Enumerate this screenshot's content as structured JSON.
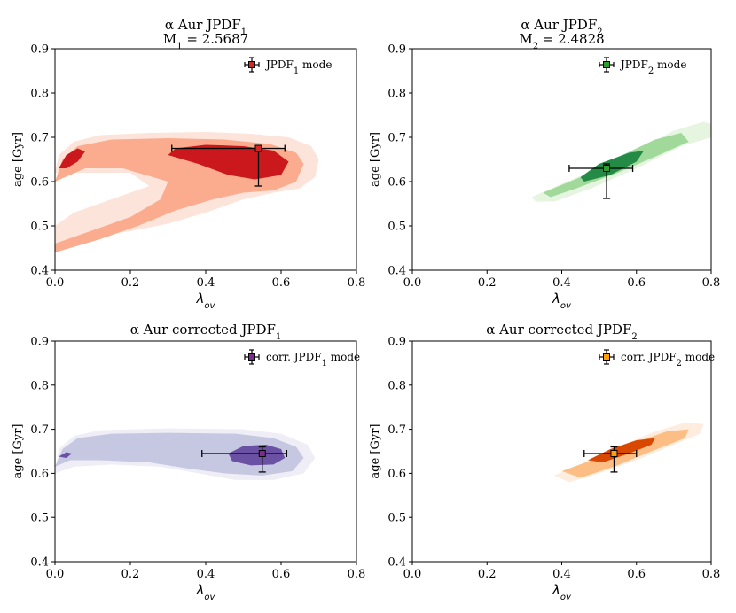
{
  "chart_data": [
    {
      "type": "contour",
      "title": "α Aur JPDF",
      "title_sub": "1",
      "subtitle": "M",
      "subtitle_sub": "1",
      "subtitle_value": " = 2.5687",
      "xlabel": "λ",
      "xlabel_sub": "ov",
      "ylabel": "age [Gyr]",
      "xlim": [
        0.0,
        0.8
      ],
      "ylim": [
        0.4,
        0.9
      ],
      "xticks": [
        "0.0",
        "0.2",
        "0.4",
        "0.6",
        "0.8"
      ],
      "yticks": [
        "0.4",
        "0.5",
        "0.6",
        "0.7",
        "0.8",
        "0.9"
      ],
      "legend_label": "JPDF",
      "legend_sub": "1",
      "legend_suffix": " mode",
      "legend_loc": "top-right",
      "mode": {
        "x": 0.54,
        "y": 0.675,
        "xerr_low": 0.31,
        "xerr_high": 0.61,
        "yerr_low": 0.59,
        "yerr_high": 0.675
      },
      "palette": {
        "light": "#fde4da",
        "mid": "#fbab8e",
        "dark": "#cb181d",
        "marker": "#d62728"
      },
      "regions": {
        "light": [
          [
            0.0,
            0.62
          ],
          [
            0.01,
            0.66
          ],
          [
            0.05,
            0.69
          ],
          [
            0.12,
            0.705
          ],
          [
            0.25,
            0.71
          ],
          [
            0.4,
            0.712
          ],
          [
            0.52,
            0.708
          ],
          [
            0.62,
            0.7
          ],
          [
            0.68,
            0.68
          ],
          [
            0.7,
            0.65
          ],
          [
            0.69,
            0.61
          ],
          [
            0.65,
            0.585
          ],
          [
            0.58,
            0.575
          ],
          [
            0.5,
            0.56
          ],
          [
            0.4,
            0.53
          ],
          [
            0.3,
            0.505
          ],
          [
            0.2,
            0.488
          ],
          [
            0.1,
            0.475
          ],
          [
            0.0,
            0.455
          ],
          [
            0.0,
            0.5
          ],
          [
            0.05,
            0.53
          ],
          [
            0.15,
            0.56
          ],
          [
            0.25,
            0.59
          ],
          [
            0.2,
            0.62
          ],
          [
            0.1,
            0.62
          ]
        ],
        "mid": [
          [
            0.0,
            0.6
          ],
          [
            0.02,
            0.65
          ],
          [
            0.06,
            0.68
          ],
          [
            0.15,
            0.695
          ],
          [
            0.3,
            0.698
          ],
          [
            0.45,
            0.695
          ],
          [
            0.57,
            0.685
          ],
          [
            0.64,
            0.665
          ],
          [
            0.66,
            0.64
          ],
          [
            0.64,
            0.6
          ],
          [
            0.58,
            0.58
          ],
          [
            0.5,
            0.575
          ],
          [
            0.42,
            0.56
          ],
          [
            0.32,
            0.535
          ],
          [
            0.22,
            0.5
          ],
          [
            0.12,
            0.47
          ],
          [
            0.0,
            0.44
          ],
          [
            0.0,
            0.46
          ],
          [
            0.1,
            0.49
          ],
          [
            0.2,
            0.52
          ],
          [
            0.28,
            0.56
          ],
          [
            0.3,
            0.6
          ],
          [
            0.18,
            0.63
          ],
          [
            0.08,
            0.63
          ]
        ],
        "dark": [
          [
            0.32,
            0.675
          ],
          [
            0.4,
            0.683
          ],
          [
            0.5,
            0.68
          ],
          [
            0.58,
            0.67
          ],
          [
            0.62,
            0.645
          ],
          [
            0.6,
            0.615
          ],
          [
            0.53,
            0.605
          ],
          [
            0.46,
            0.615
          ],
          [
            0.38,
            0.64
          ],
          [
            0.3,
            0.66
          ]
        ],
        "dark2": [
          [
            0.01,
            0.63
          ],
          [
            0.03,
            0.66
          ],
          [
            0.06,
            0.675
          ],
          [
            0.08,
            0.668
          ],
          [
            0.06,
            0.645
          ],
          [
            0.03,
            0.63
          ]
        ]
      }
    },
    {
      "type": "contour",
      "title": "α Aur JPDF",
      "title_sub": "2",
      "subtitle": "M",
      "subtitle_sub": "2",
      "subtitle_value": " = 2.4828",
      "xlabel": "λ",
      "xlabel_sub": "ov",
      "ylabel": "age [Gyr]",
      "xlim": [
        0.0,
        0.8
      ],
      "ylim": [
        0.4,
        0.9
      ],
      "xticks": [
        "0.0",
        "0.2",
        "0.4",
        "0.6",
        "0.8"
      ],
      "yticks": [
        "0.4",
        "0.5",
        "0.6",
        "0.7",
        "0.8",
        "0.9"
      ],
      "legend_label": "JPDF",
      "legend_sub": "2",
      "legend_suffix": " mode",
      "legend_loc": "top-right",
      "mode": {
        "x": 0.52,
        "y": 0.63,
        "xerr_low": 0.42,
        "xerr_high": 0.59,
        "yerr_low": 0.562,
        "yerr_high": 0.64
      },
      "palette": {
        "light": "#e5f5e0",
        "mid": "#a1d99b",
        "dark": "#238b45",
        "marker": "#2ca02c"
      },
      "regions": {
        "light": [
          [
            0.32,
            0.565
          ],
          [
            0.4,
            0.595
          ],
          [
            0.5,
            0.63
          ],
          [
            0.6,
            0.67
          ],
          [
            0.7,
            0.715
          ],
          [
            0.78,
            0.735
          ],
          [
            0.8,
            0.73
          ],
          [
            0.8,
            0.7
          ],
          [
            0.72,
            0.68
          ],
          [
            0.6,
            0.63
          ],
          [
            0.48,
            0.585
          ],
          [
            0.38,
            0.555
          ],
          [
            0.33,
            0.555
          ]
        ],
        "mid": [
          [
            0.35,
            0.575
          ],
          [
            0.45,
            0.61
          ],
          [
            0.55,
            0.655
          ],
          [
            0.65,
            0.695
          ],
          [
            0.72,
            0.71
          ],
          [
            0.74,
            0.69
          ],
          [
            0.66,
            0.66
          ],
          [
            0.55,
            0.62
          ],
          [
            0.44,
            0.585
          ],
          [
            0.37,
            0.565
          ]
        ],
        "dark": [
          [
            0.45,
            0.61
          ],
          [
            0.5,
            0.64
          ],
          [
            0.58,
            0.665
          ],
          [
            0.62,
            0.67
          ],
          [
            0.6,
            0.645
          ],
          [
            0.53,
            0.615
          ],
          [
            0.46,
            0.6
          ]
        ]
      }
    },
    {
      "type": "contour",
      "title": "α Aur corrected JPDF",
      "title_sub": "1",
      "xlabel": "λ",
      "xlabel_sub": "ov",
      "ylabel": "age [Gyr]",
      "xlim": [
        0.0,
        0.8
      ],
      "ylim": [
        0.4,
        0.9
      ],
      "xticks": [
        "0.0",
        "0.2",
        "0.4",
        "0.6",
        "0.8"
      ],
      "yticks": [
        "0.4",
        "0.5",
        "0.6",
        "0.7",
        "0.8",
        "0.9"
      ],
      "legend_label": "corr. JPDF",
      "legend_sub": "1",
      "legend_suffix": " mode",
      "legend_loc": "top-right",
      "mode": {
        "x": 0.55,
        "y": 0.645,
        "xerr_low": 0.39,
        "xerr_high": 0.615,
        "yerr_low": 0.603,
        "yerr_high": 0.66
      },
      "palette": {
        "light": "#efedf5",
        "mid": "#c6c7e1",
        "dark": "#6a51a3",
        "marker": "#7b2d8b"
      },
      "regions": {
        "light": [
          [
            0.0,
            0.6
          ],
          [
            0.01,
            0.655
          ],
          [
            0.05,
            0.685
          ],
          [
            0.12,
            0.698
          ],
          [
            0.3,
            0.702
          ],
          [
            0.5,
            0.7
          ],
          [
            0.6,
            0.69
          ],
          [
            0.67,
            0.665
          ],
          [
            0.69,
            0.635
          ],
          [
            0.66,
            0.6
          ],
          [
            0.58,
            0.585
          ],
          [
            0.48,
            0.585
          ],
          [
            0.38,
            0.6
          ],
          [
            0.28,
            0.615
          ],
          [
            0.15,
            0.62
          ],
          [
            0.05,
            0.615
          ]
        ],
        "mid": [
          [
            0.0,
            0.615
          ],
          [
            0.02,
            0.655
          ],
          [
            0.06,
            0.68
          ],
          [
            0.15,
            0.69
          ],
          [
            0.3,
            0.692
          ],
          [
            0.48,
            0.69
          ],
          [
            0.58,
            0.68
          ],
          [
            0.64,
            0.66
          ],
          [
            0.66,
            0.635
          ],
          [
            0.63,
            0.605
          ],
          [
            0.55,
            0.595
          ],
          [
            0.45,
            0.6
          ],
          [
            0.36,
            0.61
          ],
          [
            0.25,
            0.625
          ],
          [
            0.12,
            0.63
          ],
          [
            0.04,
            0.63
          ]
        ],
        "dark": [
          [
            0.46,
            0.645
          ],
          [
            0.5,
            0.662
          ],
          [
            0.56,
            0.665
          ],
          [
            0.6,
            0.655
          ],
          [
            0.61,
            0.635
          ],
          [
            0.58,
            0.62
          ],
          [
            0.52,
            0.618
          ],
          [
            0.47,
            0.628
          ]
        ],
        "dark2": [
          [
            0.01,
            0.638
          ],
          [
            0.03,
            0.648
          ],
          [
            0.045,
            0.645
          ],
          [
            0.03,
            0.635
          ]
        ]
      }
    },
    {
      "type": "contour",
      "title": "α Aur corrected JPDF",
      "title_sub": "2",
      "xlabel": "λ",
      "xlabel_sub": "ov",
      "ylabel": "age [Gyr]",
      "xlim": [
        0.0,
        0.8
      ],
      "ylim": [
        0.4,
        0.9
      ],
      "xticks": [
        "0.0",
        "0.2",
        "0.4",
        "0.6",
        "0.8"
      ],
      "yticks": [
        "0.4",
        "0.5",
        "0.6",
        "0.7",
        "0.8",
        "0.9"
      ],
      "legend_label": "corr. JPDF",
      "legend_sub": "2",
      "legend_suffix": " mode",
      "legend_loc": "top-right",
      "mode": {
        "x": 0.54,
        "y": 0.645,
        "xerr_low": 0.46,
        "xerr_high": 0.6,
        "yerr_low": 0.603,
        "yerr_high": 0.66
      },
      "palette": {
        "light": "#feedde",
        "mid": "#fdbe85",
        "dark": "#d94801",
        "marker": "#ff9f0e"
      },
      "regions": {
        "light": [
          [
            0.38,
            0.595
          ],
          [
            0.45,
            0.62
          ],
          [
            0.55,
            0.66
          ],
          [
            0.65,
            0.695
          ],
          [
            0.73,
            0.715
          ],
          [
            0.78,
            0.712
          ],
          [
            0.77,
            0.69
          ],
          [
            0.7,
            0.665
          ],
          [
            0.6,
            0.63
          ],
          [
            0.5,
            0.6
          ],
          [
            0.42,
            0.58
          ]
        ],
        "mid": [
          [
            0.4,
            0.605
          ],
          [
            0.48,
            0.63
          ],
          [
            0.58,
            0.665
          ],
          [
            0.68,
            0.695
          ],
          [
            0.74,
            0.7
          ],
          [
            0.73,
            0.68
          ],
          [
            0.64,
            0.65
          ],
          [
            0.54,
            0.615
          ],
          [
            0.45,
            0.59
          ]
        ],
        "dark": [
          [
            0.47,
            0.63
          ],
          [
            0.53,
            0.655
          ],
          [
            0.6,
            0.675
          ],
          [
            0.65,
            0.68
          ],
          [
            0.64,
            0.665
          ],
          [
            0.58,
            0.645
          ],
          [
            0.51,
            0.625
          ]
        ]
      }
    }
  ]
}
